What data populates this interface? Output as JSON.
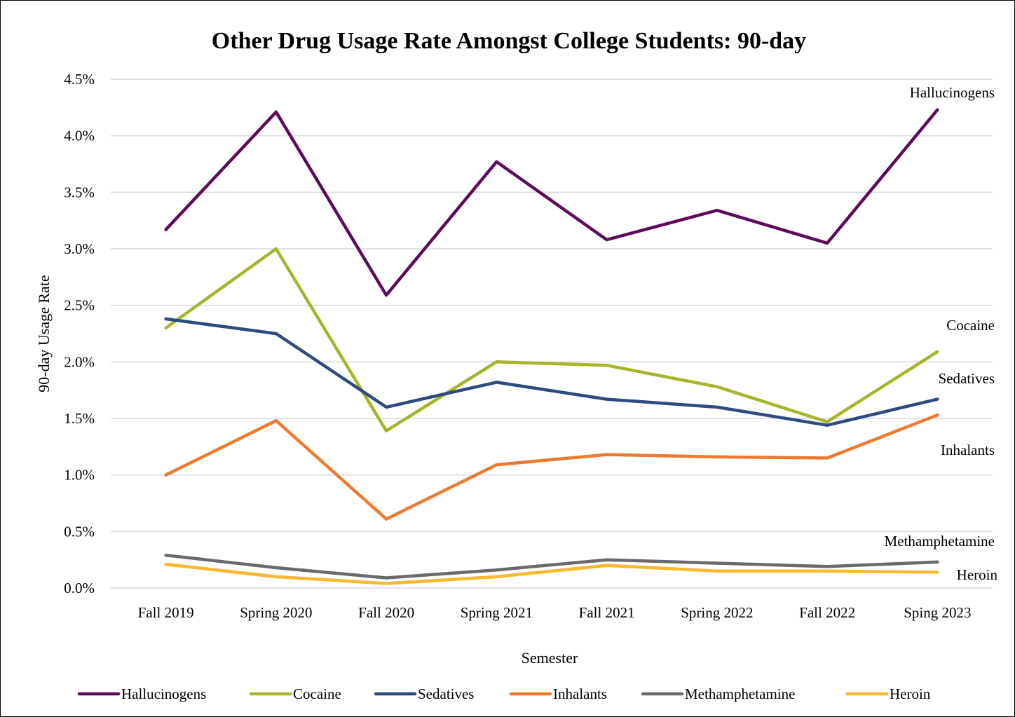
{
  "chart_data": {
    "type": "line",
    "title": "Other Drug Usage Rate Amongst College Students: 90-day",
    "xlabel": "Semester",
    "ylabel": "90-day Usage Rate",
    "categories": [
      "Fall 2019",
      "Spring 2020",
      "Fall 2020",
      "Spring 2021",
      "Fall 2021",
      "Spring 2022",
      "Fall 2022",
      "Sping 2023"
    ],
    "ylim": [
      0,
      4.5
    ],
    "yticks": [
      "0.0%",
      "0.5%",
      "1.0%",
      "1.5%",
      "2.0%",
      "2.5%",
      "3.0%",
      "3.5%",
      "4.0%",
      "4.5%"
    ],
    "grid": "horizontal",
    "legend_position": "bottom",
    "series": [
      {
        "name": "Hallucinogens",
        "color": "#5c0a5a",
        "values": [
          3.17,
          4.21,
          2.59,
          3.77,
          3.08,
          3.34,
          3.05,
          4.23
        ]
      },
      {
        "name": "Cocaine",
        "color": "#a7b52d",
        "values": [
          2.3,
          3.0,
          1.39,
          2.0,
          1.97,
          1.78,
          1.47,
          2.09
        ]
      },
      {
        "name": "Sedatives",
        "color": "#2e4b80",
        "values": [
          2.38,
          2.25,
          1.6,
          1.82,
          1.67,
          1.6,
          1.44,
          1.67
        ]
      },
      {
        "name": "Inhalants",
        "color": "#ee7a30",
        "values": [
          1.0,
          1.48,
          0.61,
          1.09,
          1.18,
          1.16,
          1.15,
          1.53
        ]
      },
      {
        "name": "Methamphetamine",
        "color": "#6a6a6e",
        "values": [
          0.29,
          0.18,
          0.09,
          0.16,
          0.25,
          0.22,
          0.19,
          0.23
        ]
      },
      {
        "name": "Heroin",
        "color": "#f9b82d",
        "values": [
          0.21,
          0.1,
          0.04,
          0.1,
          0.2,
          0.15,
          0.15,
          0.14
        ]
      }
    ],
    "end_labels": [
      "Hallucinogens",
      "Cocaine",
      "Sedatives",
      "Inhalants",
      "Methamphetamine",
      "Heroin"
    ]
  }
}
